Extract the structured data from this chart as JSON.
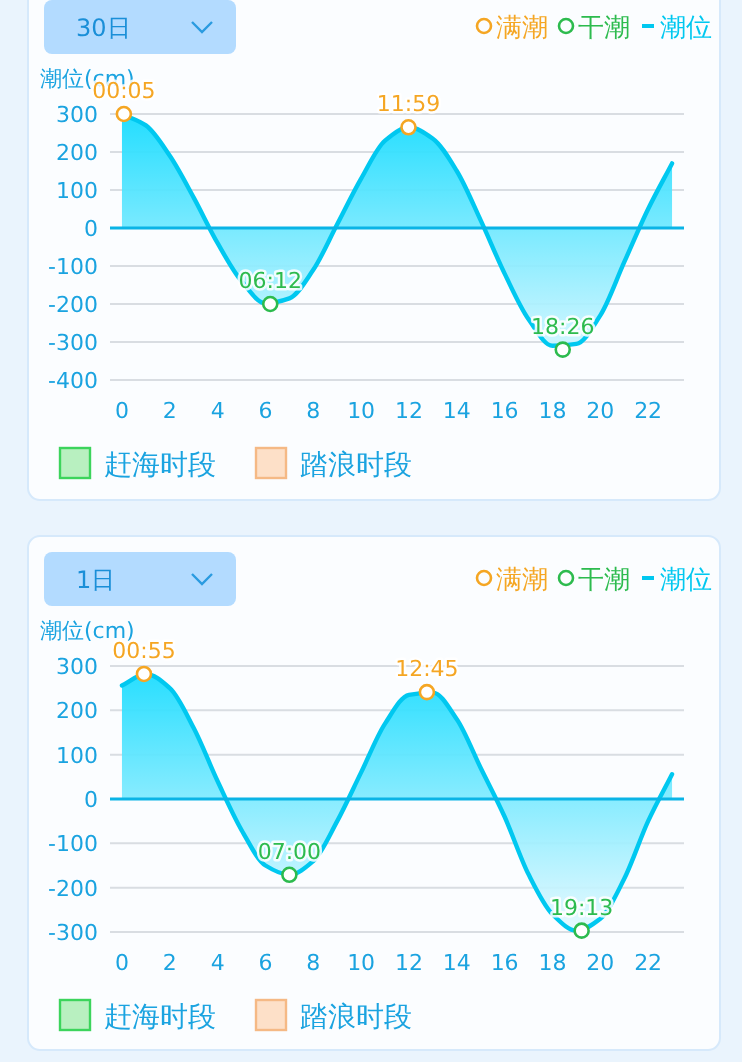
{
  "chart_data": [
    {
      "type": "area",
      "title": "30日",
      "ylabel": "潮位(cm)",
      "x": [
        0,
        1,
        2,
        3,
        4,
        5,
        6,
        7,
        8,
        9,
        10,
        11,
        12,
        13,
        14,
        15,
        16,
        17,
        18,
        19,
        20,
        21,
        22,
        23
      ],
      "xlim": [
        -0.5,
        23.5
      ],
      "xticks": [
        0,
        2,
        4,
        6,
        8,
        10,
        12,
        14,
        16,
        18,
        20,
        22
      ],
      "ref_lines": [
        {
          "axis": "y",
          "value": 0,
          "color": "#0ab4e6"
        }
      ],
      "ylim": [
        -400,
        300
      ],
      "yticks": [
        -400,
        -300,
        -200,
        -100,
        0,
        100,
        200,
        300
      ],
      "grid": "y",
      "legend": "top right",
      "series": [
        {
          "name": "满潮",
          "type": "scatter",
          "color": "#f5a623",
          "marker": "circle",
          "x": [
            0.08,
            11.98
          ],
          "values": [
            300,
            265
          ]
        },
        {
          "name": "干潮",
          "type": "scatter",
          "color": "#2dbb4e",
          "marker": "circle",
          "x": [
            6.2,
            18.43
          ],
          "values": [
            -200,
            -320
          ]
        },
        {
          "name": "潮位",
          "color": "#00c8f0",
          "marker": "none",
          "values": [
            300,
            270,
            190,
            80,
            -40,
            -140,
            -198,
            -185,
            -110,
            10,
            130,
            230,
            265,
            235,
            150,
            20,
            -120,
            -240,
            -310,
            -305,
            -230,
            -90,
            50,
            170
          ]
        },
        {
          "name": "赶海时段",
          "type": "bar",
          "color": "#b8f0c0",
          "values": [
            null,
            null,
            null,
            null,
            null,
            null,
            null,
            null,
            null,
            null,
            null,
            null,
            null,
            null,
            null,
            null,
            null,
            null,
            null,
            null,
            null,
            null,
            null,
            null
          ]
        },
        {
          "name": "踏浪时段",
          "type": "bar",
          "color": "#fde0c8",
          "values": [
            null,
            null,
            null,
            null,
            null,
            null,
            null,
            null,
            null,
            null,
            null,
            null,
            null,
            null,
            null,
            null,
            null,
            null,
            null,
            null,
            null,
            null,
            null,
            null
          ]
        }
      ],
      "annotations": [
        {
          "text": "00:05",
          "x": 0.08,
          "y": 300
        },
        {
          "text": "11:59",
          "x": 11.98,
          "y": 265
        },
        {
          "text": "06:12",
          "x": 6.2,
          "y": -200
        },
        {
          "text": "18:26",
          "x": 18.43,
          "y": -320
        }
      ]
    },
    {
      "type": "area",
      "title": "1日",
      "ylabel": "潮位(cm)",
      "x": [
        0,
        1,
        2,
        3,
        4,
        5,
        6,
        7,
        8,
        9,
        10,
        11,
        12,
        13,
        14,
        15,
        16,
        17,
        18,
        19,
        20,
        21,
        22,
        23
      ],
      "xlim": [
        -0.5,
        23.5
      ],
      "xticks": [
        0,
        2,
        4,
        6,
        8,
        10,
        12,
        14,
        16,
        18,
        20,
        22
      ],
      "ref_lines": [
        {
          "axis": "y",
          "value": 0,
          "color": "#0ab4e6"
        }
      ],
      "ylim": [
        -300,
        300
      ],
      "yticks": [
        -300,
        -200,
        -100,
        0,
        100,
        200,
        300
      ],
      "grid": "y",
      "legend": "top right",
      "series": [
        {
          "name": "满潮",
          "type": "scatter",
          "color": "#f5a623",
          "marker": "circle",
          "x": [
            0.92,
            12.75
          ],
          "values": [
            282,
            241
          ]
        },
        {
          "name": "干潮",
          "type": "scatter",
          "color": "#2dbb4e",
          "marker": "circle",
          "x": [
            7.0,
            19.22
          ],
          "values": [
            -171,
            -297
          ]
        },
        {
          "name": "潮位",
          "color": "#00c8f0",
          "marker": "none",
          "values": [
            256,
            282,
            250,
            160,
            40,
            -70,
            -150,
            -171,
            -140,
            -50,
            60,
            170,
            235,
            240,
            180,
            70,
            -40,
            -170,
            -260,
            -297,
            -270,
            -180,
            -50,
            56
          ]
        },
        {
          "name": "赶海时段",
          "type": "bar",
          "color": "#b8f0c0",
          "values": [
            null,
            null,
            null,
            null,
            null,
            null,
            null,
            null,
            null,
            null,
            null,
            null,
            null,
            null,
            null,
            null,
            null,
            null,
            null,
            null,
            null,
            null,
            null,
            null
          ]
        },
        {
          "name": "踏浪时段",
          "type": "bar",
          "color": "#fde0c8",
          "values": [
            null,
            null,
            null,
            null,
            null,
            null,
            null,
            null,
            null,
            null,
            null,
            null,
            null,
            null,
            null,
            null,
            null,
            null,
            null,
            null,
            null,
            null,
            null,
            null
          ]
        }
      ],
      "annotations": [
        {
          "text": "00:55",
          "x": 0.92,
          "y": 282
        },
        {
          "text": "12:45",
          "x": 12.75,
          "y": 241
        },
        {
          "text": "07:00",
          "x": 7.0,
          "y": -171
        },
        {
          "text": "19:13",
          "x": 19.22,
          "y": -297
        }
      ]
    }
  ]
}
